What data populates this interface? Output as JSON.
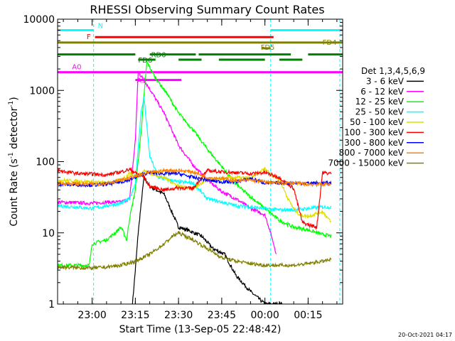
{
  "chart_data": {
    "type": "line",
    "title": "RHESSI Observing Summary Count Rates",
    "xlabel": "Start Time (13-Sep-05 22:48:42)",
    "ylabel_main": "Count Rate (s",
    "ylabel_sup": "-1",
    "ylabel_mid": " detector",
    "ylabel_end": ")",
    "yscale": "log",
    "ylim": [
      1,
      10000
    ],
    "xlim_minutes": [
      -12,
      87
    ],
    "x_ticks": [
      {
        "m": 0,
        "label": "23:00"
      },
      {
        "m": 15,
        "label": "23:15"
      },
      {
        "m": 30,
        "label": "23:30"
      },
      {
        "m": 45,
        "label": "23:45"
      },
      {
        "m": 60,
        "label": "00:00"
      },
      {
        "m": 75,
        "label": "00:15"
      }
    ],
    "y_ticks": [
      {
        "v": 1,
        "label": "1"
      },
      {
        "v": 10,
        "label": "10"
      },
      {
        "v": 100,
        "label": "100"
      },
      {
        "v": 1000,
        "label": "1000"
      },
      {
        "v": 10000,
        "label": "10000"
      }
    ],
    "legend_title": "Det 1,3,4,5,6,9",
    "series": [
      {
        "name": "3 - 6 keV",
        "color": "#000000",
        "points": [
          [
            14,
            1
          ],
          [
            15,
            3
          ],
          [
            16,
            10
          ],
          [
            17,
            25
          ],
          [
            18,
            60
          ],
          [
            20,
            45
          ],
          [
            25,
            35
          ],
          [
            30,
            12
          ],
          [
            33,
            11
          ],
          [
            38,
            9
          ],
          [
            42,
            6
          ],
          [
            46,
            5
          ],
          [
            50,
            2.5
          ],
          [
            55,
            1.5
          ],
          [
            60,
            1
          ],
          [
            66,
            1
          ]
        ]
      },
      {
        "name": "6 - 12 keV",
        "color": "#ff00ff",
        "points": [
          [
            -12,
            27
          ],
          [
            0,
            26
          ],
          [
            5,
            27
          ],
          [
            10,
            27
          ],
          [
            13,
            30
          ],
          [
            15,
            200
          ],
          [
            16,
            1800
          ],
          [
            17,
            1600
          ],
          [
            20,
            1050
          ],
          [
            25,
            480
          ],
          [
            30,
            170
          ],
          [
            35,
            90
          ],
          [
            40,
            55
          ],
          [
            45,
            38
          ],
          [
            50,
            30
          ],
          [
            55,
            22
          ],
          [
            60,
            18
          ],
          [
            62,
            10
          ],
          [
            64,
            5
          ]
        ]
      },
      {
        "name": "12 - 25 keV",
        "color": "#00ff00",
        "points": [
          [
            -12,
            3.5
          ],
          [
            -1,
            3.5
          ],
          [
            0,
            7
          ],
          [
            5,
            8
          ],
          [
            8,
            10
          ],
          [
            10,
            12
          ],
          [
            12,
            8
          ],
          [
            13,
            16
          ],
          [
            15,
            40
          ],
          [
            17,
            260
          ],
          [
            19,
            2500
          ],
          [
            22,
            1500
          ],
          [
            26,
            900
          ],
          [
            30,
            480
          ],
          [
            35,
            280
          ],
          [
            40,
            150
          ],
          [
            45,
            85
          ],
          [
            50,
            48
          ],
          [
            55,
            32
          ],
          [
            60,
            22
          ],
          [
            65,
            15
          ],
          [
            70,
            12
          ],
          [
            75,
            11
          ],
          [
            80,
            9.5
          ],
          [
            83,
            9
          ]
        ]
      },
      {
        "name": "25 - 50 keV",
        "color": "#00ffff",
        "points": [
          [
            -12,
            24
          ],
          [
            -5,
            23
          ],
          [
            0,
            22
          ],
          [
            5,
            24
          ],
          [
            10,
            26
          ],
          [
            13,
            30
          ],
          [
            15,
            50
          ],
          [
            17,
            500
          ],
          [
            18,
            800
          ],
          [
            20,
            120
          ],
          [
            23,
            60
          ],
          [
            27,
            55
          ],
          [
            30,
            52
          ],
          [
            35,
            50
          ],
          [
            40,
            30
          ],
          [
            45,
            27
          ],
          [
            50,
            24
          ],
          [
            55,
            23
          ],
          [
            60,
            22
          ],
          [
            65,
            21
          ],
          [
            70,
            21
          ],
          [
            75,
            22
          ],
          [
            80,
            23
          ],
          [
            83,
            23
          ]
        ]
      },
      {
        "name": "50 - 100 keV",
        "color": "#dddd00",
        "points": [
          [
            -12,
            55
          ],
          [
            0,
            52
          ],
          [
            5,
            50
          ],
          [
            10,
            55
          ],
          [
            12,
            62
          ],
          [
            13,
            70
          ],
          [
            15,
            60
          ],
          [
            18,
            75
          ],
          [
            20,
            68
          ],
          [
            25,
            60
          ],
          [
            30,
            45
          ],
          [
            35,
            42
          ],
          [
            40,
            55
          ],
          [
            45,
            58
          ],
          [
            50,
            60
          ],
          [
            55,
            58
          ],
          [
            60,
            80
          ],
          [
            63,
            62
          ],
          [
            65,
            58
          ],
          [
            68,
            30
          ],
          [
            70,
            22
          ],
          [
            72,
            18
          ],
          [
            75,
            17
          ],
          [
            80,
            20
          ],
          [
            83,
            14
          ]
        ]
      },
      {
        "name": "100 - 300 keV",
        "color": "#ff0000",
        "points": [
          [
            -12,
            75
          ],
          [
            -5,
            68
          ],
          [
            0,
            67
          ],
          [
            5,
            65
          ],
          [
            10,
            72
          ],
          [
            13,
            78
          ],
          [
            15,
            70
          ],
          [
            18,
            60
          ],
          [
            20,
            45
          ],
          [
            25,
            40
          ],
          [
            30,
            43
          ],
          [
            35,
            42
          ],
          [
            40,
            75
          ],
          [
            45,
            72
          ],
          [
            50,
            70
          ],
          [
            55,
            68
          ],
          [
            60,
            70
          ],
          [
            65,
            60
          ],
          [
            70,
            42
          ],
          [
            73,
            14
          ],
          [
            75,
            13
          ],
          [
            78,
            12
          ],
          [
            80,
            70
          ],
          [
            83,
            68
          ]
        ]
      },
      {
        "name": "300 - 800 keV",
        "color": "#0000ff",
        "points": [
          [
            -12,
            48
          ],
          [
            0,
            47
          ],
          [
            5,
            48
          ],
          [
            10,
            52
          ],
          [
            13,
            55
          ],
          [
            15,
            60
          ],
          [
            18,
            68
          ],
          [
            20,
            70
          ],
          [
            25,
            68
          ],
          [
            30,
            68
          ],
          [
            35,
            60
          ],
          [
            40,
            55
          ],
          [
            45,
            52
          ],
          [
            50,
            52
          ],
          [
            55,
            58
          ],
          [
            60,
            50
          ],
          [
            65,
            50
          ],
          [
            70,
            50
          ],
          [
            75,
            50
          ],
          [
            80,
            50
          ],
          [
            83,
            50
          ]
        ]
      },
      {
        "name": "800 - 7000 keV",
        "color": "#ff8000",
        "points": [
          [
            -12,
            50
          ],
          [
            0,
            48
          ],
          [
            5,
            50
          ],
          [
            10,
            55
          ],
          [
            15,
            62
          ],
          [
            20,
            70
          ],
          [
            25,
            75
          ],
          [
            30,
            75
          ],
          [
            35,
            72
          ],
          [
            40,
            60
          ],
          [
            45,
            58
          ],
          [
            50,
            54
          ],
          [
            55,
            55
          ],
          [
            60,
            52
          ],
          [
            65,
            50
          ],
          [
            70,
            50
          ],
          [
            75,
            48
          ],
          [
            80,
            48
          ],
          [
            83,
            48
          ]
        ]
      },
      {
        "name": "7000 - 15000 keV",
        "color": "#808000",
        "points": [
          [
            -12,
            3.3
          ],
          [
            0,
            3.2
          ],
          [
            5,
            3.3
          ],
          [
            10,
            3.5
          ],
          [
            15,
            4
          ],
          [
            20,
            5
          ],
          [
            25,
            7
          ],
          [
            28,
            9
          ],
          [
            30,
            10
          ],
          [
            35,
            8
          ],
          [
            40,
            6
          ],
          [
            45,
            4.5
          ],
          [
            50,
            4
          ],
          [
            55,
            3.7
          ],
          [
            60,
            3.5
          ],
          [
            65,
            3.5
          ],
          [
            70,
            3.5
          ],
          [
            75,
            3.7
          ],
          [
            80,
            4
          ],
          [
            83,
            4.2
          ]
        ]
      }
    ],
    "flag_bars": [
      {
        "label": "N",
        "color": "#00ffff",
        "value": 7000,
        "segments": [
          [
            -12,
            0.5
          ],
          [
            62,
            87
          ]
        ]
      },
      {
        "label": "F",
        "color": "#ff0000",
        "value": 5600,
        "segments": [
          [
            1,
            63
          ]
        ]
      },
      {
        "label": "FD4",
        "color": "#808000",
        "value": 4700,
        "segments": [
          [
            -12,
            87
          ]
        ]
      },
      {
        "label": "FD5",
        "color": "#808000",
        "value": 3900,
        "segments": [
          [
            59,
            62
          ]
        ]
      },
      {
        "label": "RD0",
        "color": "#008000",
        "value": 3200,
        "segments": [
          [
            -12,
            15
          ],
          [
            20,
            36
          ],
          [
            37,
            69
          ],
          [
            75,
            87
          ]
        ]
      },
      {
        "label": "FD6",
        "color": "#008000",
        "value": 2700,
        "segments": [
          [
            16,
            22
          ],
          [
            30,
            38
          ],
          [
            44,
            60
          ],
          [
            65,
            73
          ]
        ]
      },
      {
        "label": "A0",
        "color": "#ff00ff",
        "value": 1800,
        "segments": [
          [
            -12,
            87
          ]
        ]
      },
      {
        "label": "A3",
        "color": "#ff00ff",
        "value": 1400,
        "segments": [
          [
            15,
            31
          ]
        ]
      }
    ],
    "dashed_lines_minutes": [
      0.5,
      62,
      86
    ],
    "timestamp": "20-Oct-2021 04:17"
  }
}
